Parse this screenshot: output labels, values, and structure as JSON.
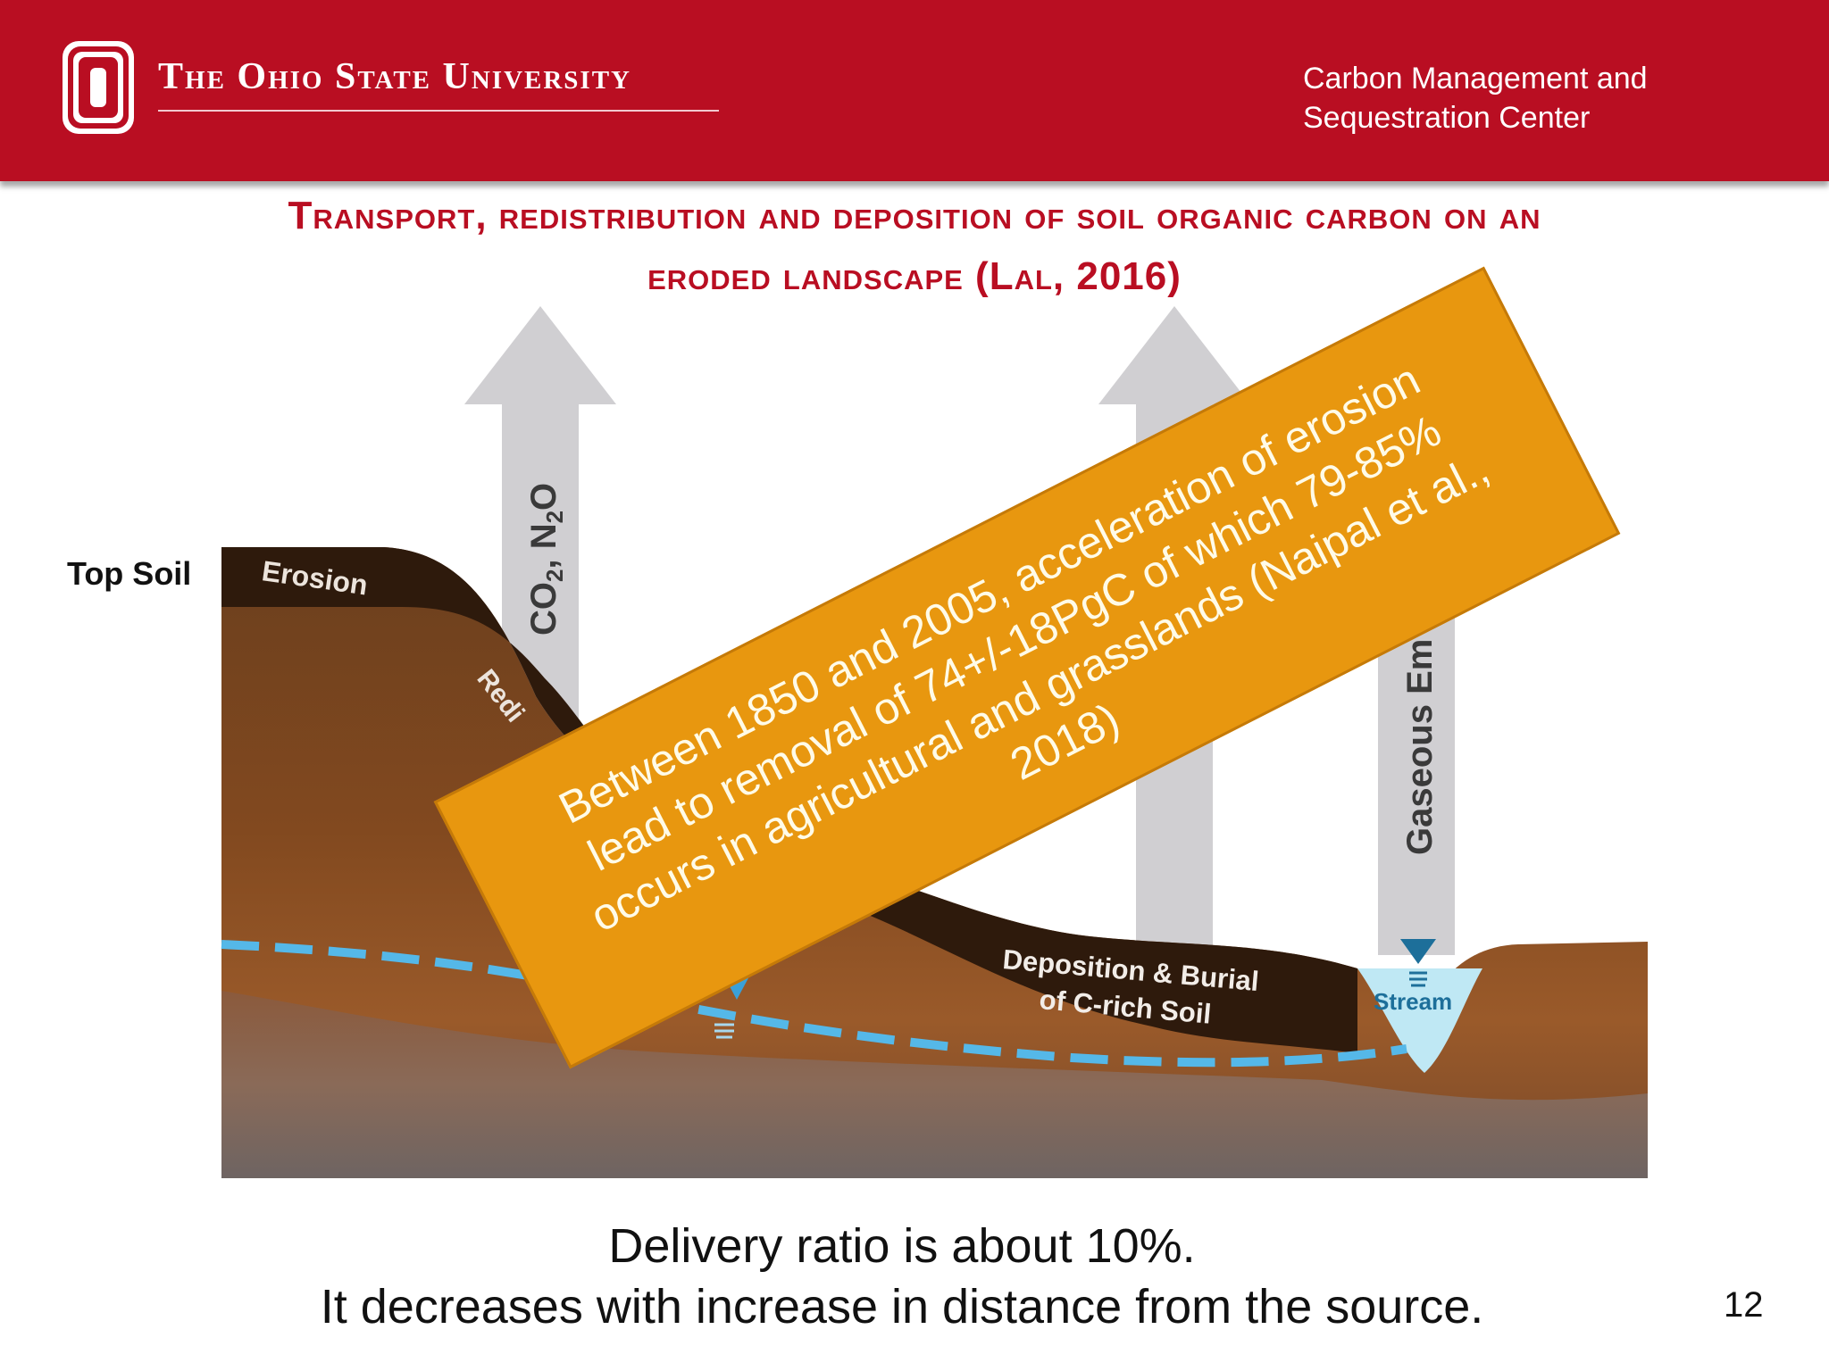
{
  "header": {
    "university": "The Ohio State University",
    "center_line1": "Carbon Management and",
    "center_line2": "Sequestration Center",
    "colors": {
      "brand_red": "#b90e22",
      "text": "#ffffff"
    }
  },
  "title": {
    "line1": "Transport, redistribution and deposition of soil organic carbon on an",
    "line2": "eroded landscape (Lal, 2016)"
  },
  "diagram": {
    "top_soil_label": "Top Soil",
    "erosion_label": "Erosion",
    "redistribution_label": "Redi",
    "arrow1_label_main": "CO",
    "arrow1_sub1": "2",
    "arrow1_mid": ", N",
    "arrow1_sub2": "2",
    "arrow1_end": "O",
    "arrow3_label": "Gaseous Em",
    "deposition_line1": "Deposition & Burial",
    "deposition_line2": "of C-rich Soil",
    "stream_label": "Stream",
    "colors": {
      "arrow_gray": "#d0cfd2",
      "topsoil_dark": "#2e1a0c",
      "water_line": "#55b8e8",
      "water": "#bfe8f4",
      "marker_blue": "#1d6f9a"
    }
  },
  "callout": {
    "text": "Between 1850 and 2005, acceleration of erosion lead to removal of 74+/-18PgC of which 79-85% occurs in agricultural and grasslands (Naipal et al., 2018)",
    "color": "#e8970f"
  },
  "caption": {
    "line1": "Delivery ratio is about 10%.",
    "line2": "It decreases with increase in distance from the source."
  },
  "page_number": "12"
}
